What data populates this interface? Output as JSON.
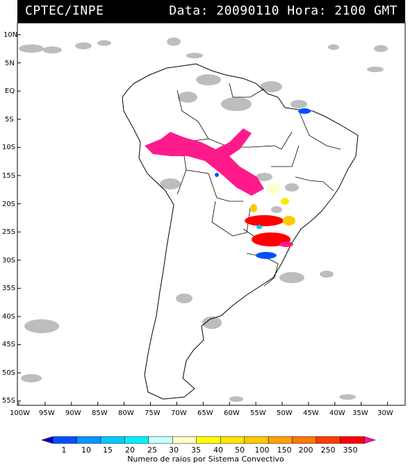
{
  "header": {
    "source": "CPTEC/INPE",
    "datetime": "Data: 20090110 Hora: 2100 GMT"
  },
  "map": {
    "lat_labels": [
      "10N",
      "5N",
      "EQ",
      "5S",
      "10S",
      "15S",
      "20S",
      "25S",
      "30S",
      "35S",
      "40S",
      "45S",
      "50S",
      "55S"
    ],
    "lon_labels": [
      "100W",
      "95W",
      "90W",
      "85W",
      "80W",
      "75W",
      "70W",
      "65W",
      "60W",
      "55W",
      "50W",
      "45W",
      "40W",
      "35W",
      "30W"
    ],
    "lat_range": [
      -57,
      12
    ],
    "lon_range": [
      -100,
      -28
    ]
  },
  "colorbar": {
    "values": [
      "1",
      "10",
      "15",
      "20",
      "25",
      "30",
      "35",
      "40",
      "50",
      "100",
      "150",
      "200",
      "250",
      "350"
    ],
    "colors": [
      "#0000cc",
      "#0050ff",
      "#0096ff",
      "#00c8ff",
      "#00f0ff",
      "#c8ffff",
      "#ffffc8",
      "#ffff00",
      "#ffe600",
      "#ffc800",
      "#ffa000",
      "#ff7800",
      "#ff3c00",
      "#ff0000",
      "#ff1493"
    ],
    "title": "Numero de raios por Sistema Convectivo"
  }
}
